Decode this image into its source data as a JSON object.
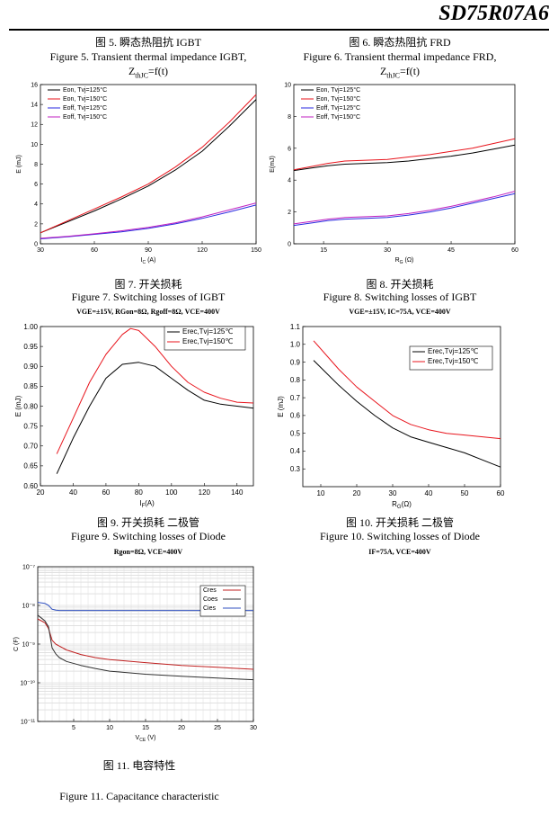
{
  "header": {
    "title": "SD75R07A6"
  },
  "fig5": {
    "cn": "图 5.  瞬态热阻抗 IGBT",
    "en": "Figure 5.  Transient thermal impedance IGBT,",
    "z": "Z",
    "zsub": "thJC",
    "zrest": "=f(t)"
  },
  "fig6": {
    "cn": "图 6.  瞬态热阻抗 FRD",
    "en": "Figure 6.  Transient thermal impedance FRD,",
    "z": "Z",
    "zsub": "thJC",
    "zrest": "=f(t)"
  },
  "fig7": {
    "cn": "图 7.  开关损耗",
    "en": "Figure 7.  Switching losses of IGBT",
    "cond": "VGE=±15V, RGon=8Ω, Rgoff=8Ω, VCE=400V"
  },
  "fig8": {
    "cn": "图 8.  开关损耗",
    "en": "Figure 8.  Switching losses of IGBT",
    "cond": "VGE=±15V, IC=75A, VCE=400V"
  },
  "fig9": {
    "cn": "图 9.  开关损耗  二极管",
    "en": "Figure 9.  Switching losses of Diode",
    "cond": "Rgon=8Ω, VCE=400V"
  },
  "fig10": {
    "cn": "图 10.  开关损耗  二极管",
    "en": "Figure 10.  Switching losses of Diode",
    "cond": "IF=75A, VCE=400V"
  },
  "fig11": {
    "cn": "图 11.  电容特性",
    "en": "Figure 11.  Capacitance characteristic"
  },
  "chart_data": [
    {
      "id": "c1",
      "type": "line",
      "xlabel": "I",
      "xlabel_sub": "C",
      "xlabel_unit": " (A)",
      "ylabel": "E (mJ)",
      "xlim": [
        30,
        150
      ],
      "ylim": [
        0,
        16
      ],
      "xticks": [
        30,
        60,
        90,
        120,
        150
      ],
      "yticks": [
        0,
        2,
        4,
        6,
        8,
        10,
        12,
        14,
        16
      ],
      "legend_position": "top-left",
      "series": [
        {
          "name": "Eon, Tvj=125°C",
          "color": "#000000",
          "x": [
            30,
            45,
            60,
            75,
            90,
            105,
            120,
            135,
            150
          ],
          "y": [
            1.1,
            2.2,
            3.3,
            4.5,
            5.8,
            7.4,
            9.3,
            11.8,
            14.5
          ]
        },
        {
          "name": "Eon, Tvj=150°C",
          "color": "#e8141c",
          "x": [
            30,
            45,
            60,
            75,
            90,
            105,
            120,
            135,
            150
          ],
          "y": [
            1.1,
            2.3,
            3.5,
            4.7,
            6.0,
            7.7,
            9.7,
            12.2,
            15.0
          ]
        },
        {
          "name": "Eoff, Tvj=125°C",
          "color": "#2a2ae0",
          "x": [
            30,
            45,
            60,
            75,
            90,
            105,
            120,
            135,
            150
          ],
          "y": [
            0.5,
            0.7,
            0.95,
            1.2,
            1.55,
            2.0,
            2.55,
            3.2,
            3.9
          ]
        },
        {
          "name": "Eoff, Tvj=150°C",
          "color": "#c020c0",
          "x": [
            30,
            45,
            60,
            75,
            90,
            105,
            120,
            135,
            150
          ],
          "y": [
            0.55,
            0.75,
            1.0,
            1.3,
            1.65,
            2.1,
            2.7,
            3.4,
            4.1
          ]
        }
      ]
    },
    {
      "id": "c2",
      "type": "line",
      "xlabel": "R",
      "xlabel_sub": "G",
      "xlabel_unit": " (Ω)",
      "ylabel": "E(mJ)",
      "xlim": [
        8,
        60
      ],
      "ylim": [
        0,
        10
      ],
      "xticks": [
        15,
        30,
        45,
        60
      ],
      "yticks": [
        0,
        2,
        4,
        6,
        8,
        10
      ],
      "legend_position": "top-left",
      "series": [
        {
          "name": "Eon, Tvj=125°C",
          "color": "#000000",
          "x": [
            8,
            12,
            16,
            20,
            25,
            30,
            35,
            40,
            45,
            50,
            55,
            60
          ],
          "y": [
            4.6,
            4.75,
            4.9,
            5.0,
            5.05,
            5.1,
            5.2,
            5.35,
            5.5,
            5.7,
            5.95,
            6.2
          ]
        },
        {
          "name": "Eon, Tvj=150°C",
          "color": "#e8141c",
          "x": [
            8,
            12,
            16,
            20,
            25,
            30,
            35,
            40,
            45,
            50,
            55,
            60
          ],
          "y": [
            4.65,
            4.85,
            5.05,
            5.2,
            5.25,
            5.3,
            5.45,
            5.6,
            5.8,
            6.0,
            6.3,
            6.6
          ]
        },
        {
          "name": "Eoff, Tvj=125°C",
          "color": "#2a2ae0",
          "x": [
            8,
            12,
            16,
            20,
            25,
            30,
            35,
            40,
            45,
            50,
            55,
            60
          ],
          "y": [
            1.15,
            1.3,
            1.45,
            1.55,
            1.6,
            1.65,
            1.8,
            2.0,
            2.25,
            2.55,
            2.85,
            3.15
          ]
        },
        {
          "name": "Eoff, Tvj=150°C",
          "color": "#c020c0",
          "x": [
            8,
            12,
            16,
            20,
            25,
            30,
            35,
            40,
            45,
            50,
            55,
            60
          ],
          "y": [
            1.25,
            1.4,
            1.55,
            1.65,
            1.7,
            1.75,
            1.9,
            2.1,
            2.35,
            2.65,
            2.95,
            3.3
          ]
        }
      ]
    },
    {
      "id": "c3",
      "type": "line",
      "xlabel": "I",
      "xlabel_sub": "F",
      "xlabel_unit": "(A)",
      "ylabel": "E (mJ)",
      "xlim": [
        20,
        150
      ],
      "ylim": [
        0.6,
        1.0
      ],
      "xticks": [
        20,
        40,
        60,
        80,
        100,
        120,
        140
      ],
      "yticks": [
        0.6,
        0.65,
        0.7,
        0.75,
        0.8,
        0.85,
        0.9,
        0.95,
        1.0
      ],
      "legend_position": "top-right",
      "series": [
        {
          "name": "Erec,Tvj=125℃",
          "color": "#000000",
          "x": [
            30,
            40,
            50,
            60,
            70,
            80,
            90,
            100,
            110,
            120,
            130,
            140,
            150
          ],
          "y": [
            0.63,
            0.72,
            0.8,
            0.87,
            0.905,
            0.91,
            0.9,
            0.87,
            0.84,
            0.815,
            0.805,
            0.8,
            0.795
          ]
        },
        {
          "name": "Erec,Tvj=150℃",
          "color": "#e8141c",
          "x": [
            30,
            40,
            50,
            60,
            70,
            75,
            80,
            90,
            100,
            110,
            120,
            130,
            140,
            150
          ],
          "y": [
            0.68,
            0.77,
            0.86,
            0.93,
            0.98,
            0.995,
            0.99,
            0.95,
            0.9,
            0.86,
            0.835,
            0.82,
            0.81,
            0.808
          ]
        }
      ]
    },
    {
      "id": "c4",
      "type": "line",
      "xlabel": "R",
      "xlabel_sub": "G",
      "xlabel_unit": "(Ω)",
      "ylabel": "E (mJ)",
      "xlim": [
        5,
        60
      ],
      "ylim": [
        0.2,
        1.1
      ],
      "xticks": [
        10,
        20,
        30,
        40,
        50,
        60
      ],
      "yticks": [
        0.3,
        0.4,
        0.5,
        0.6,
        0.7,
        0.8,
        0.9,
        1.0,
        1.1
      ],
      "legend_position": "top-right",
      "series": [
        {
          "name": "Erec,Tvj=125℃",
          "color": "#000000",
          "x": [
            8,
            15,
            20,
            25,
            30,
            35,
            40,
            45,
            50,
            55,
            60
          ],
          "y": [
            0.91,
            0.77,
            0.68,
            0.6,
            0.53,
            0.48,
            0.45,
            0.42,
            0.39,
            0.35,
            0.31
          ]
        },
        {
          "name": "Erec,Tvj=150℃",
          "color": "#e8141c",
          "x": [
            8,
            15,
            20,
            25,
            30,
            35,
            40,
            45,
            50,
            55,
            60
          ],
          "y": [
            1.02,
            0.86,
            0.76,
            0.68,
            0.6,
            0.55,
            0.52,
            0.5,
            0.49,
            0.48,
            0.47
          ]
        }
      ]
    },
    {
      "id": "c5",
      "type": "line",
      "xlabel": "V",
      "xlabel_sub": "CE",
      "xlabel_unit": " (V)",
      "ylabel": "C (F)",
      "xlim": [
        0,
        30
      ],
      "ylim": [
        -11,
        -7
      ],
      "yscale": "log",
      "xticks": [
        5,
        10,
        15,
        20,
        25,
        30
      ],
      "yticks": [
        -11,
        -10,
        -9,
        -8,
        -7
      ],
      "ytick_labels": [
        "10⁻¹¹",
        "10⁻¹⁰",
        "10⁻⁹",
        "10⁻⁸",
        "10⁻⁷"
      ],
      "legend_position": "top-right",
      "series": [
        {
          "name": "Cres",
          "color": "#c02020",
          "x": [
            0,
            1,
            1.5,
            2,
            2.5,
            3,
            4,
            6,
            8,
            10,
            15,
            20,
            25,
            30
          ],
          "y": [
            -8.35,
            -8.45,
            -8.6,
            -8.9,
            -9.0,
            -9.05,
            -9.15,
            -9.27,
            -9.35,
            -9.4,
            -9.48,
            -9.55,
            -9.6,
            -9.65
          ]
        },
        {
          "name": "Coes",
          "color": "#303030",
          "x": [
            0,
            1,
            1.5,
            2,
            2.5,
            3,
            4,
            6,
            8,
            10,
            15,
            20,
            25,
            30
          ],
          "y": [
            -8.25,
            -8.4,
            -8.55,
            -9.1,
            -9.25,
            -9.35,
            -9.45,
            -9.55,
            -9.63,
            -9.7,
            -9.78,
            -9.83,
            -9.88,
            -9.92
          ]
        },
        {
          "name": "Cies",
          "color": "#3050c0",
          "x": [
            0,
            1,
            1.5,
            2,
            2.5,
            3,
            5,
            10,
            15,
            20,
            25,
            30
          ],
          "y": [
            -7.92,
            -7.95,
            -8.0,
            -8.1,
            -8.12,
            -8.13,
            -8.13,
            -8.13,
            -8.13,
            -8.13,
            -8.13,
            -8.13
          ]
        }
      ]
    }
  ]
}
